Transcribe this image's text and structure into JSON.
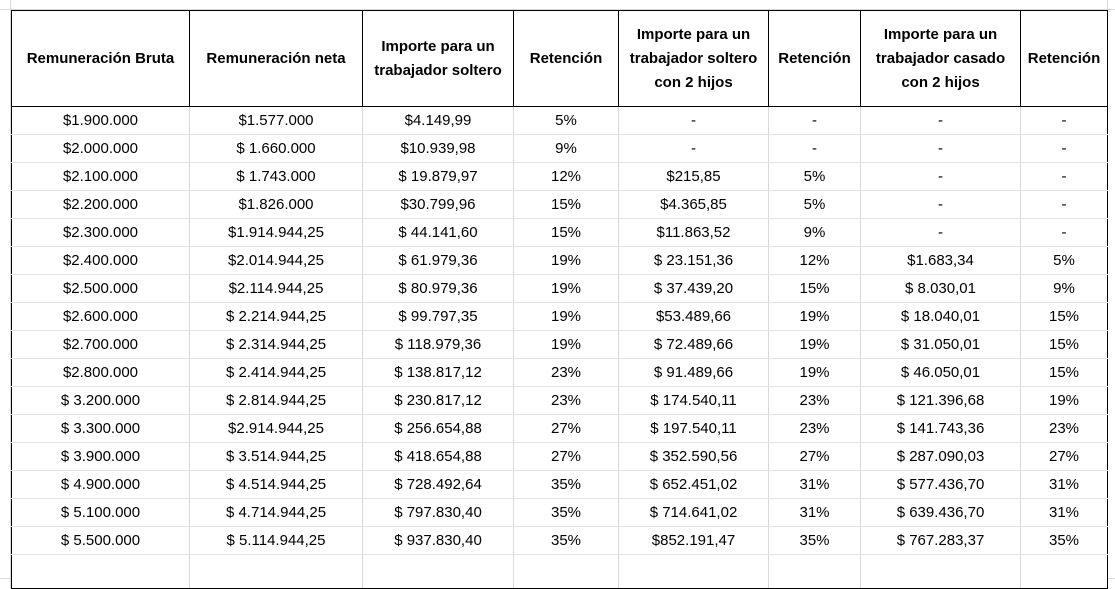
{
  "table": {
    "headers": [
      "Remuneración Bruta",
      "Remuneración neta",
      "Importe para un trabajador soltero",
      "Retención",
      "Importe para un trabajador soltero con 2 hijos",
      "Retención",
      "Importe para un trabajador casado con 2 hijos",
      "Retención"
    ],
    "rows": [
      [
        "$1.900.000",
        "$1.577.000",
        "$4.149,99",
        "5%",
        "-",
        "-",
        "-",
        "-"
      ],
      [
        "$2.000.000",
        "$ 1.660.000",
        "$10.939,98",
        "9%",
        "-",
        "-",
        "-",
        "-"
      ],
      [
        "$2.100.000",
        "$ 1.743.000",
        "$ 19.879,97",
        "12%",
        "$215,85",
        "5%",
        "-",
        "-"
      ],
      [
        "$2.200.000",
        "$1.826.000",
        "$30.799,96",
        "15%",
        "$4.365,85",
        "5%",
        "-",
        "-"
      ],
      [
        "$2.300.000",
        "$1.914.944,25",
        "$ 44.141,60",
        "15%",
        "$11.863,52",
        "9%",
        "-",
        "-"
      ],
      [
        "$2.400.000",
        "$2.014.944,25",
        "$ 61.979,36",
        "19%",
        "$ 23.151,36",
        "12%",
        "$1.683,34",
        "5%"
      ],
      [
        "$2.500.000",
        "$2.114.944,25",
        "$ 80.979,36",
        "19%",
        "$ 37.439,20",
        "15%",
        "$ 8.030,01",
        "9%"
      ],
      [
        "$2.600.000",
        "$ 2.214.944,25",
        "$ 99.797,35",
        "19%",
        "$53.489,66",
        "19%",
        "$ 18.040,01",
        "15%"
      ],
      [
        "$2.700.000",
        "$ 2.314.944,25",
        "$ 118.979,36",
        "19%",
        "$ 72.489,66",
        "19%",
        "$ 31.050,01",
        "15%"
      ],
      [
        "$2.800.000",
        "$ 2.414.944,25",
        "$ 138.817,12",
        "23%",
        "$ 91.489,66",
        "19%",
        "$ 46.050,01",
        "15%"
      ],
      [
        "$ 3.200.000",
        "$ 2.814.944,25",
        "$ 230.817,12",
        "23%",
        "$ 174.540,11",
        "23%",
        "$ 121.396,68",
        "19%"
      ],
      [
        "$ 3.300.000",
        "$2.914.944,25",
        "$ 256.654,88",
        "27%",
        "$ 197.540,11",
        "23%",
        "$ 141.743,36",
        "23%"
      ],
      [
        "$ 3.900.000",
        "$ 3.514.944,25",
        "$ 418.654,88",
        "27%",
        "$ 352.590,56",
        "27%",
        "$ 287.090,03",
        "27%"
      ],
      [
        "$ 4.900.000",
        "$ 4.514.944,25",
        "$ 728.492,64",
        "35%",
        "$ 652.451,02",
        "31%",
        "$ 577.436,70",
        "31%"
      ],
      [
        "$ 5.100.000",
        "$ 4.714.944,25",
        "$ 797.830,40",
        "35%",
        "$ 714.641,02",
        "31%",
        "$ 639.436,70",
        "31%"
      ],
      [
        "$ 5.500.000",
        "$ 5.114.944,25",
        "$ 937.830,40",
        "35%",
        "$852.191,47",
        "35%",
        "$ 767.283,37",
        "35%"
      ],
      [
        "",
        "",
        "",
        "",
        "",
        "",
        "",
        ""
      ]
    ]
  }
}
